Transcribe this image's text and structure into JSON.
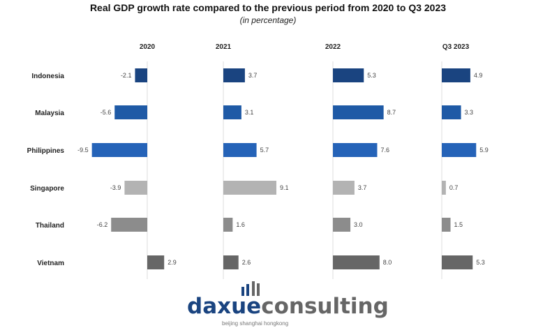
{
  "chart_data": {
    "type": "bar",
    "orientation": "horizontal",
    "title": "Real GDP growth rate compared to the previous period from 2020 to Q3 2023",
    "subtitle": "(in percentage)",
    "categories": [
      "Indonesia",
      "Malaysia",
      "Philippines",
      "Singapore",
      "Thailand",
      "Vietnam"
    ],
    "category_colors": [
      "#1a4480",
      "#1f5aa6",
      "#2563b8",
      "#b3b3b3",
      "#8c8c8c",
      "#666666"
    ],
    "panels": [
      {
        "name": "2020",
        "values": [
          -2.1,
          -5.6,
          -9.5,
          -3.9,
          -6.2,
          2.9
        ]
      },
      {
        "name": "2021",
        "values": [
          3.7,
          3.1,
          5.7,
          9.1,
          1.6,
          2.6
        ]
      },
      {
        "name": "2022",
        "values": [
          5.3,
          8.7,
          7.6,
          3.7,
          3.0,
          8.0
        ]
      },
      {
        "name": "Q3 2023",
        "values": [
          4.9,
          3.3,
          5.9,
          0.7,
          1.5,
          5.3
        ]
      }
    ],
    "grid": false,
    "legend": "none"
  },
  "logo": {
    "text": "daxueconsulting",
    "tagline": "beijing shanghai hongkong"
  }
}
